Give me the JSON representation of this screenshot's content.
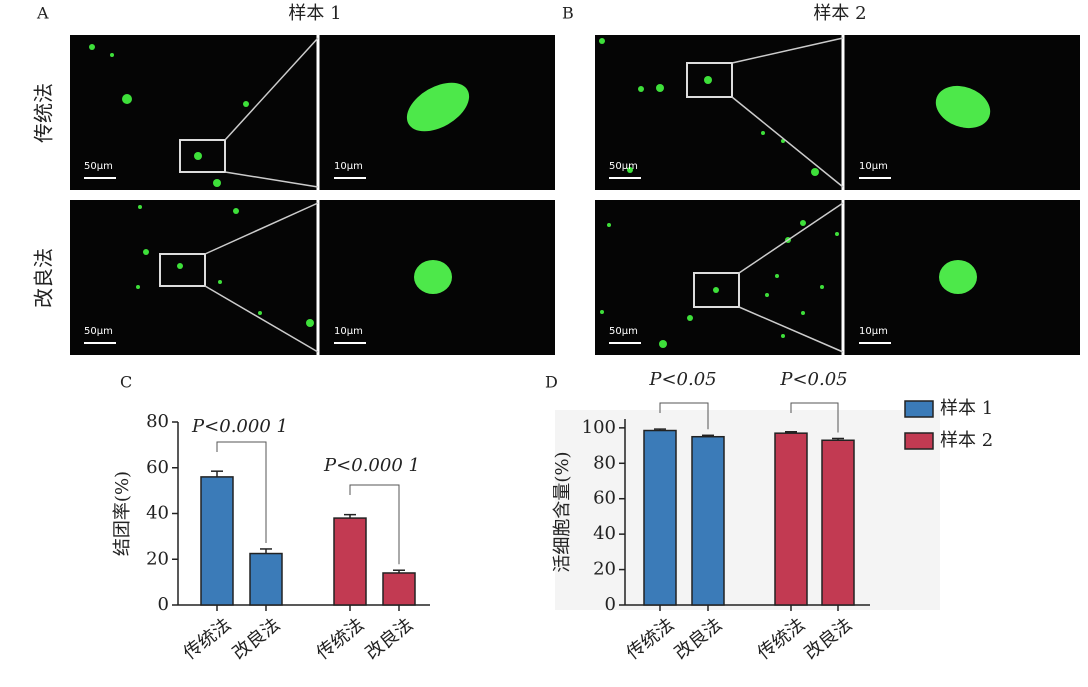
{
  "panels": {
    "labels": [
      "A",
      "B"
    ],
    "titles": [
      "样本 1",
      "样本 2"
    ],
    "rows": [
      "传统法",
      "改良法"
    ],
    "scale_bars": [
      "50μm",
      "10μm"
    ]
  },
  "chart_data": [
    {
      "type": "bar",
      "label": "C",
      "y_label": "结团率(%)",
      "categories": [
        "传统法",
        "改良法"
      ],
      "series": [
        {
          "name": "样本 1",
          "color": "#3b7bb8",
          "values": [
            56,
            22.5
          ],
          "errors": [
            2.5,
            2
          ]
        },
        {
          "name": "样本 2",
          "color": "#c23a52",
          "values": [
            38,
            14
          ],
          "errors": [
            1.5,
            1.2
          ]
        }
      ],
      "annotations": [
        "P<0.000 1",
        "P<0.000 1"
      ],
      "ylim": [
        0,
        80
      ],
      "yticks": [
        0,
        20,
        40,
        60,
        80
      ]
    },
    {
      "type": "bar",
      "label": "D",
      "y_label": "活细胞含量(%)",
      "categories": [
        "传统法",
        "改良法"
      ],
      "series": [
        {
          "name": "样本 1",
          "color": "#3b7bb8",
          "values": [
            98.5,
            95
          ],
          "errors": [
            0.8,
            0.8
          ]
        },
        {
          "name": "样本 2",
          "color": "#c23a52",
          "values": [
            97,
            93
          ],
          "errors": [
            0.8,
            1
          ]
        }
      ],
      "annotations": [
        "P<0.05",
        "P<0.05"
      ],
      "ylim": [
        0,
        105
      ],
      "yticks": [
        0,
        20,
        40,
        60,
        80,
        100
      ],
      "legend": "right"
    }
  ]
}
